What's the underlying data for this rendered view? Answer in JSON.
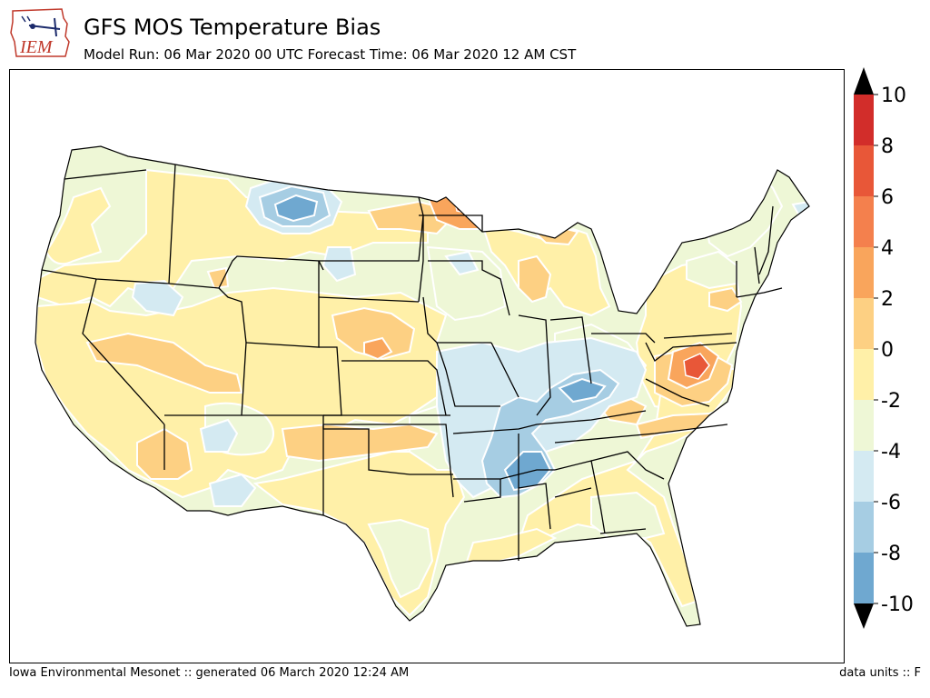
{
  "header": {
    "title": "GFS MOS Temperature Bias",
    "subtitle": "Model Run: 06 Mar 2020 00 UTC Forecast Time: 06 Mar 2020 12 AM CST",
    "logo_text": "IEM"
  },
  "footer": {
    "left": "Iowa Environmental Mesonet :: generated 06 March 2020 12:24 AM",
    "right": "data units :: F"
  },
  "colorbar": {
    "ticks": [
      "10",
      "8",
      "6",
      "4",
      "2",
      "0",
      "-2",
      "-4",
      "-6",
      "-8",
      "-10"
    ],
    "colors": [
      "#d73027",
      "#f46d43",
      "#fdae61",
      "#fee090",
      "#ffffbf",
      "#e0f3f8",
      "#abd9e9",
      "#74add1",
      "#4575b4",
      "#313695"
    ],
    "bin_colors_top_to_bottom": [
      "#d22d2a",
      "#e85738",
      "#f4804d",
      "#f9a55c",
      "#fdd083",
      "#fff0a8",
      "#eef7d6",
      "#d4eaf2",
      "#a6cde3",
      "#6fa8d0",
      "#4a74b5"
    ],
    "extend": "both"
  },
  "map": {
    "palette": {
      "neg6": "#6fa8d0",
      "neg4": "#a6cde3",
      "neg2": "#d4eaf2",
      "zero": "#eef7d6",
      "pos2": "#fff0a8",
      "pos4": "#fdd083",
      "pos6": "#f9a55c",
      "pos8": "#e85738"
    }
  }
}
